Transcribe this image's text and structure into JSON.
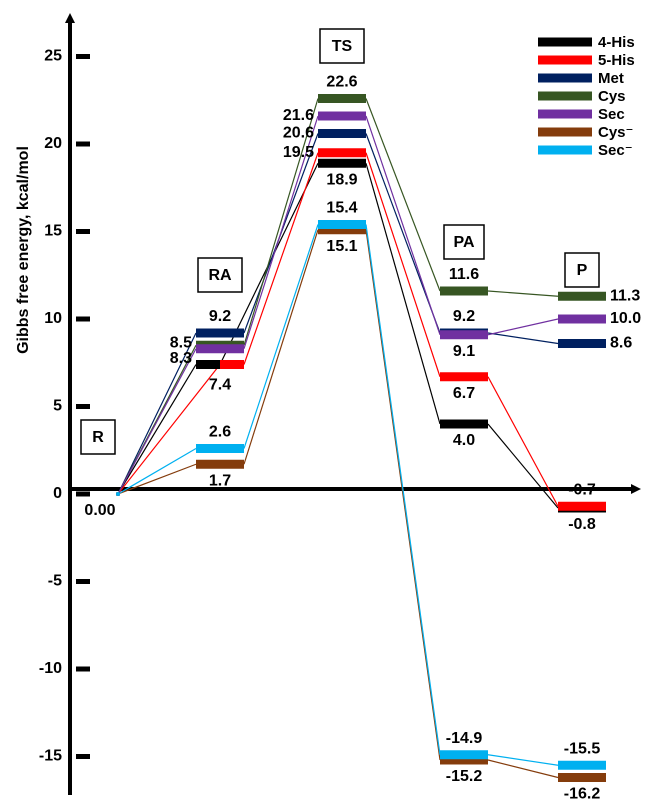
{
  "chart_data": {
    "type": "energy-profile",
    "y_label": "Gibbs free energy, kcal/mol",
    "categories": [
      "R",
      "RA",
      "TS",
      "PA",
      "P"
    ],
    "ylim": [
      -17.2,
      27.2
    ],
    "yticks": [
      -15,
      -10,
      -5,
      0,
      5,
      10,
      15,
      20,
      25
    ],
    "legend": "top-right",
    "series": [
      {
        "name": "4-His",
        "color": "#000000",
        "values": [
          0,
          7.4,
          18.9,
          4.0,
          -0.8
        ],
        "value_labels": [
          "0.00",
          "7.4",
          "18.9",
          "4.0",
          "-0.8"
        ]
      },
      {
        "name": "5-His",
        "color": "#ff0000",
        "values": [
          0,
          7.4,
          19.5,
          6.7,
          -0.7
        ],
        "value_labels": [
          null,
          null,
          "19.5",
          "6.7",
          "-0.7"
        ]
      },
      {
        "name": "Met",
        "color": "#002060",
        "values": [
          0,
          9.2,
          20.6,
          9.2,
          8.6
        ],
        "value_labels": [
          null,
          "9.2",
          "20.6",
          "9.2",
          "8.6"
        ]
      },
      {
        "name": "Cys",
        "color": "#375623",
        "values": [
          0,
          8.5,
          22.6,
          11.6,
          11.3
        ],
        "value_labels": [
          null,
          "8.5",
          "22.6",
          "11.6",
          "11.3"
        ]
      },
      {
        "name": "Sec",
        "color": "#7030a0",
        "values": [
          0,
          8.3,
          21.6,
          9.1,
          10.0
        ],
        "value_labels": [
          null,
          "8.3",
          "21.6",
          "9.1",
          "10.0"
        ]
      },
      {
        "name": "Cys⁻",
        "color": "#843c0c",
        "values": [
          0,
          1.7,
          15.1,
          -15.2,
          -16.2
        ],
        "value_labels": [
          null,
          "1.7",
          "15.1",
          "-15.2",
          "-16.2"
        ]
      },
      {
        "name": "Sec⁻",
        "color": "#00b0f0",
        "values": [
          0,
          2.6,
          15.4,
          -14.9,
          -15.5
        ],
        "value_labels": [
          null,
          "2.6",
          "15.4",
          "-14.9",
          "-15.5"
        ]
      }
    ]
  }
}
